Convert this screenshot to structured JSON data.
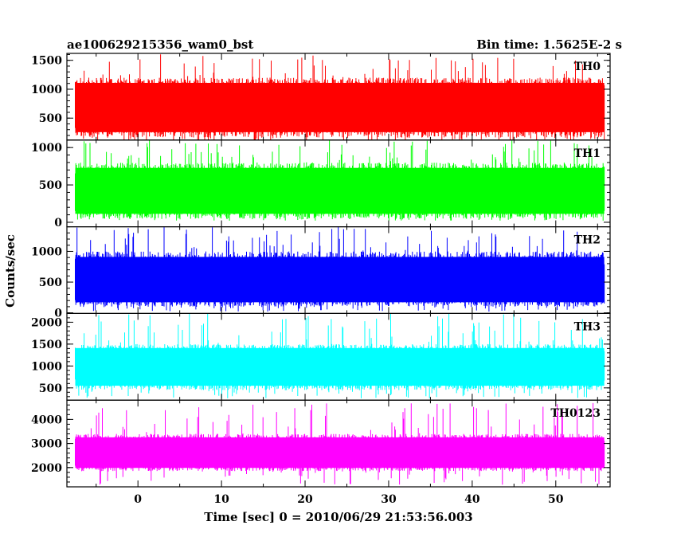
{
  "header": {
    "left_title": "ae100629215356_wam0_bst",
    "right_title": "Bin time: 1.5625E-2 s"
  },
  "chart_data": {
    "type": "line",
    "xlabel": "Time [sec] 0 = 2010/06/29 21:53:56.003",
    "ylabel": "Counts/sec",
    "xlim": [
      -8.5,
      56.5
    ],
    "x_ticks": [
      0,
      10,
      20,
      30,
      40,
      50
    ],
    "x_range_data": [
      -7.5,
      55.8
    ],
    "bin_time_s": 0.015625,
    "grid": false,
    "panels": [
      {
        "name": "TH0",
        "color": "#ff0000",
        "ylim": [
          120,
          1620
        ],
        "y_ticks": [
          500,
          1000,
          1500
        ],
        "band": {
          "center": 700,
          "low": 160,
          "high": 1200,
          "peak_low": 100,
          "peak_high": 1620
        }
      },
      {
        "name": "TH1",
        "color": "#00ff00",
        "ylim": [
          -60,
          1100
        ],
        "y_ticks": [
          0,
          500,
          1000
        ],
        "band": {
          "center": 400,
          "low": 50,
          "high": 800,
          "peak_low": 20,
          "peak_high": 1100
        }
      },
      {
        "name": "TH2",
        "color": "#0000ff",
        "ylim": [
          -10,
          1400
        ],
        "y_ticks": [
          0,
          500,
          1000
        ],
        "band": {
          "center": 500,
          "low": 100,
          "high": 1000,
          "peak_low": 20,
          "peak_high": 1400
        }
      },
      {
        "name": "TH3",
        "color": "#00ffff",
        "ylim": [
          220,
          2200
        ],
        "y_ticks": [
          500,
          1000,
          1500,
          2000
        ],
        "band": {
          "center": 1000,
          "low": 450,
          "high": 1500,
          "peak_low": 260,
          "peak_high": 2200
        }
      },
      {
        "name": "TH0123",
        "color": "#ff00ff",
        "ylim": [
          1200,
          4800
        ],
        "y_ticks": [
          2000,
          3000,
          4000
        ],
        "band": {
          "center": 2600,
          "low": 1850,
          "high": 3400,
          "peak_low": 1250,
          "peak_high": 4700
        }
      }
    ]
  }
}
